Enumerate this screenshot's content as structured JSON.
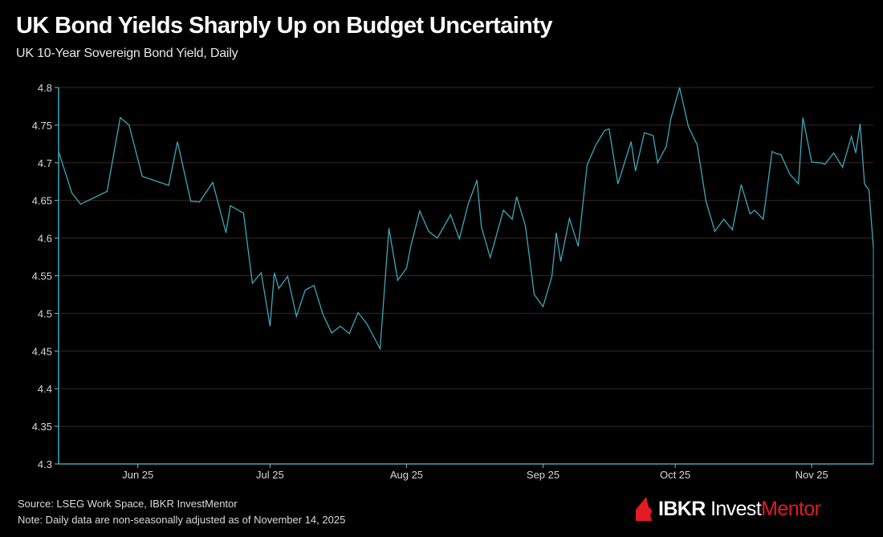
{
  "header": {
    "title": "UK Bond Yields Sharply Up on Budget Uncertainty",
    "subtitle": "UK 10-Year Sovereign Bond Yield, Daily"
  },
  "footer": {
    "source": "Source: LSEG Work Space, IBKR InvestMentor",
    "note": "Note: Daily data are non-seasonally adjusted as of November 14, 2025"
  },
  "brand": {
    "part1": "IBKR",
    "part2": " Invest",
    "part3": "Mentor",
    "accent_color": "#e31b23",
    "icon": "ibkr-logo-icon"
  },
  "colors": {
    "background": "#000000",
    "line": "#3fa7b8",
    "axis": "#3fa7b8",
    "grid": "#3a2622"
  },
  "chart_data": {
    "type": "line",
    "title": "UK Bond Yields Sharply Up on Budget Uncertainty",
    "subtitle": "UK 10-Year Sovereign Bond Yield, Daily",
    "xlabel": "",
    "ylabel": "",
    "ylim": [
      4.3,
      4.8
    ],
    "yticks": [
      4.3,
      4.35,
      4.4,
      4.45,
      4.5,
      4.55,
      4.6,
      4.65,
      4.7,
      4.75,
      4.8
    ],
    "ytick_labels": [
      "4.3",
      "4.35",
      "4.4",
      "4.45",
      "4.5",
      "4.55",
      "4.6",
      "4.65",
      "4.7",
      "4.75",
      "4.8"
    ],
    "xlim_days": [
      0,
      185
    ],
    "xticks": [
      {
        "label": "Jun 25",
        "day": 18
      },
      {
        "label": "Jul 25",
        "day": 48
      },
      {
        "label": "Aug 25",
        "day": 79
      },
      {
        "label": "Sep 25",
        "day": 110
      },
      {
        "label": "Oct 25",
        "day": 140
      },
      {
        "label": "Nov 25",
        "day": 171
      }
    ],
    "grid": true,
    "legend": "none",
    "series": [
      {
        "name": "UK 10-Year Sovereign Bond Yield",
        "x_day": [
          0,
          3,
          5,
          11,
          14,
          16,
          19,
          25,
          27,
          30,
          32,
          35,
          38,
          39,
          42,
          44,
          46,
          48,
          49,
          50,
          52,
          54,
          56,
          58,
          60,
          62,
          64,
          66,
          68,
          70,
          73,
          75,
          77,
          79,
          80,
          82,
          84,
          86,
          89,
          91,
          93,
          95,
          96,
          98,
          101,
          103,
          104,
          106,
          108,
          110,
          112,
          113,
          114,
          116,
          118,
          120,
          122,
          124,
          125,
          127,
          130,
          131,
          133,
          135,
          136,
          138,
          139,
          141,
          143,
          145,
          147,
          149,
          151,
          153,
          155,
          157,
          158,
          160,
          162,
          163,
          164,
          166,
          168,
          169,
          171,
          173,
          174,
          176,
          178,
          180,
          181,
          182,
          183,
          184,
          185
        ],
        "values": [
          4.715,
          4.66,
          4.645,
          4.662,
          4.76,
          4.75,
          4.682,
          4.67,
          4.728,
          4.649,
          4.648,
          4.674,
          4.607,
          4.643,
          4.633,
          4.54,
          4.554,
          4.483,
          4.554,
          4.533,
          4.549,
          4.496,
          4.531,
          4.537,
          4.499,
          4.474,
          4.483,
          4.473,
          4.501,
          4.486,
          4.453,
          4.613,
          4.544,
          4.56,
          4.59,
          4.636,
          4.609,
          4.6,
          4.631,
          4.599,
          4.645,
          4.677,
          4.615,
          4.574,
          4.637,
          4.625,
          4.655,
          4.616,
          4.525,
          4.509,
          4.549,
          4.607,
          4.569,
          4.626,
          4.589,
          4.697,
          4.724,
          4.743,
          4.745,
          4.672,
          4.728,
          4.689,
          4.74,
          4.736,
          4.7,
          4.722,
          4.758,
          4.8,
          4.748,
          4.724,
          4.649,
          4.609,
          4.625,
          4.611,
          4.671,
          4.632,
          4.637,
          4.625,
          4.715,
          4.712,
          4.711,
          4.685,
          4.672,
          4.76,
          4.701,
          4.7,
          4.698,
          4.713,
          4.694,
          4.735,
          4.713,
          4.752,
          4.672,
          4.664,
          4.588
        ]
      }
    ]
  }
}
